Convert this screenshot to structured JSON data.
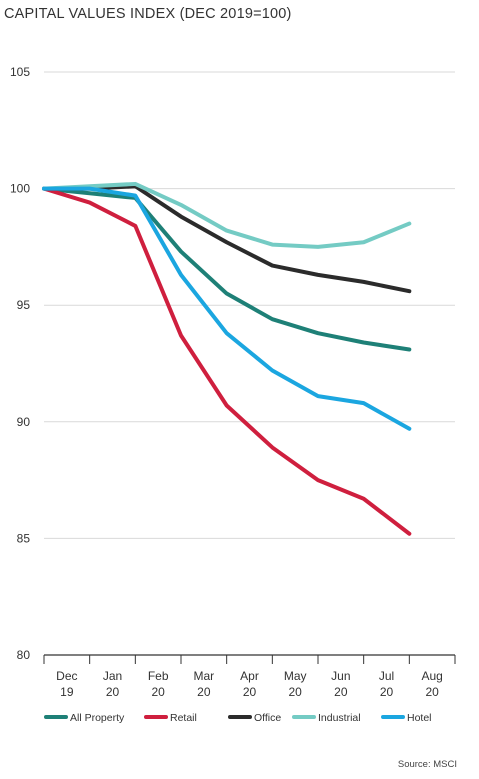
{
  "chart_data": {
    "type": "line",
    "title": "CAPITAL VALUES INDEX (DEC 2019=100)",
    "categories": [
      [
        "Dec",
        "19"
      ],
      [
        "Jan",
        "20"
      ],
      [
        "Feb",
        "20"
      ],
      [
        "Mar",
        "20"
      ],
      [
        "Apr",
        "20"
      ],
      [
        "May",
        "20"
      ],
      [
        "Jun",
        "20"
      ],
      [
        "Jul",
        "20"
      ],
      [
        "Aug",
        "20"
      ]
    ],
    "x_points": [
      "Dec 19",
      "Jan 20",
      "Feb 20",
      "Mar 20",
      "Apr 20",
      "May 20",
      "Jun 20",
      "Jul 20",
      "Aug 20"
    ],
    "ylim": [
      80,
      105
    ],
    "yticks": [
      80,
      85,
      90,
      95,
      100,
      105
    ],
    "grid": true,
    "legend_position": "bottom",
    "series": [
      {
        "name": "All Property",
        "color": "#1e8077",
        "values": [
          100,
          99.8,
          99.6,
          97.3,
          95.5,
          94.4,
          93.8,
          93.4,
          93.1
        ]
      },
      {
        "name": "Retail",
        "color": "#cf1f3e",
        "values": [
          100,
          99.4,
          98.4,
          93.7,
          90.7,
          88.9,
          87.5,
          86.7,
          85.2
        ]
      },
      {
        "name": "Office",
        "color": "#2b2b2b",
        "values": [
          100,
          100.0,
          100.1,
          98.8,
          97.7,
          96.7,
          96.3,
          96.0,
          95.6
        ]
      },
      {
        "name": "Industrial",
        "color": "#74cbc4",
        "values": [
          100,
          100.1,
          100.2,
          99.3,
          98.2,
          97.6,
          97.5,
          97.7,
          98.5
        ]
      },
      {
        "name": "Hotel",
        "color": "#1ba6e0",
        "values": [
          100,
          100.0,
          99.7,
          96.3,
          93.8,
          92.2,
          91.1,
          90.8,
          89.7
        ]
      }
    ],
    "source": "Source: MSCI"
  }
}
